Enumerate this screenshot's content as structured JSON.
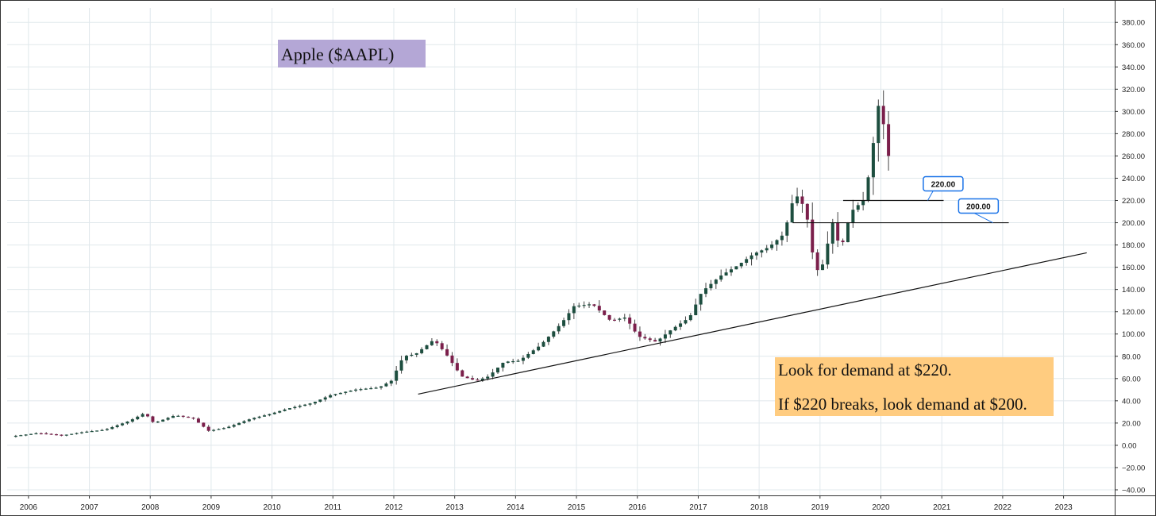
{
  "chart_data": {
    "type": "candlestick",
    "title": "Apple ($AAPL)",
    "xlabel": "",
    "ylabel": "",
    "grid": true,
    "ylim": [
      -45,
      393
    ],
    "xlim": [
      2005.65,
      2023.84
    ],
    "y_ticks": [
      "380.00",
      "360.00",
      "340.00",
      "320.00",
      "300.00",
      "280.00",
      "260.00",
      "240.00",
      "220.00",
      "200.00",
      "180.00",
      "160.00",
      "140.00",
      "120.00",
      "100.00",
      "80.00",
      "60.00",
      "40.00",
      "20.00",
      "0.00",
      "−20.00",
      "−40.00"
    ],
    "x_ticks": [
      "2006",
      "2007",
      "2008",
      "2009",
      "2010",
      "2011",
      "2012",
      "2013",
      "2014",
      "2015",
      "2016",
      "2017",
      "2018",
      "2019",
      "2020",
      "2021",
      "2022",
      "2023"
    ],
    "colors": {
      "up": "#1d4e3f",
      "down": "#7b1f4b",
      "grid": "#e0e8ec",
      "axis": "#333333"
    },
    "anchors": [
      [
        2005.75,
        8
      ],
      [
        2006.2,
        11
      ],
      [
        2006.6,
        9
      ],
      [
        2006.95,
        12
      ],
      [
        2007.3,
        14
      ],
      [
        2007.7,
        22
      ],
      [
        2007.95,
        29
      ],
      [
        2008.1,
        20
      ],
      [
        2008.45,
        27
      ],
      [
        2008.75,
        24
      ],
      [
        2009.0,
        13
      ],
      [
        2009.3,
        16
      ],
      [
        2009.7,
        24
      ],
      [
        2010.0,
        28
      ],
      [
        2010.3,
        33
      ],
      [
        2010.7,
        38
      ],
      [
        2011.0,
        45
      ],
      [
        2011.4,
        50
      ],
      [
        2011.8,
        52
      ],
      [
        2012.0,
        58
      ],
      [
        2012.2,
        80
      ],
      [
        2012.4,
        82
      ],
      [
        2012.7,
        95
      ],
      [
        2012.9,
        82
      ],
      [
        2013.15,
        62
      ],
      [
        2013.4,
        58
      ],
      [
        2013.6,
        62
      ],
      [
        2013.85,
        75
      ],
      [
        2014.1,
        76
      ],
      [
        2014.45,
        90
      ],
      [
        2014.8,
        110
      ],
      [
        2015.0,
        125
      ],
      [
        2015.3,
        127
      ],
      [
        2015.6,
        112
      ],
      [
        2015.85,
        115
      ],
      [
        2016.05,
        98
      ],
      [
        2016.35,
        93
      ],
      [
        2016.6,
        104
      ],
      [
        2016.9,
        115
      ],
      [
        2017.1,
        138
      ],
      [
        2017.4,
        152
      ],
      [
        2017.7,
        162
      ],
      [
        2017.95,
        172
      ],
      [
        2018.2,
        178
      ],
      [
        2018.45,
        190
      ],
      [
        2018.62,
        225
      ],
      [
        2018.72,
        222
      ],
      [
        2018.85,
        200
      ],
      [
        2018.95,
        160
      ],
      [
        2019.05,
        155
      ],
      [
        2019.25,
        200
      ],
      [
        2019.38,
        175
      ],
      [
        2019.55,
        210
      ],
      [
        2019.75,
        220
      ],
      [
        2019.85,
        245
      ],
      [
        2020.0,
        305
      ],
      [
        2020.08,
        290
      ],
      [
        2020.15,
        260
      ]
    ],
    "trendline": {
      "from": [
        2012.4,
        46
      ],
      "to": [
        2023.38,
        173
      ]
    },
    "levels": [
      {
        "value": 220,
        "from": 2019.38,
        "to": 2021.03,
        "label": "220.00",
        "label_at": 2021.27,
        "label_y": 235
      },
      {
        "value": 200,
        "from": 2018.55,
        "to": 2022.1,
        "label": "200.00",
        "label_at": 2021.85,
        "label_y": 215
      }
    ]
  },
  "annotations": {
    "title_box": {
      "text": "Apple ($AAPL)",
      "color": "#b4a7d6"
    },
    "note_box": {
      "color": "#ffcc80",
      "lines": [
        "Look for demand at $220.",
        "If $220 breaks, look demand at $200."
      ]
    }
  }
}
